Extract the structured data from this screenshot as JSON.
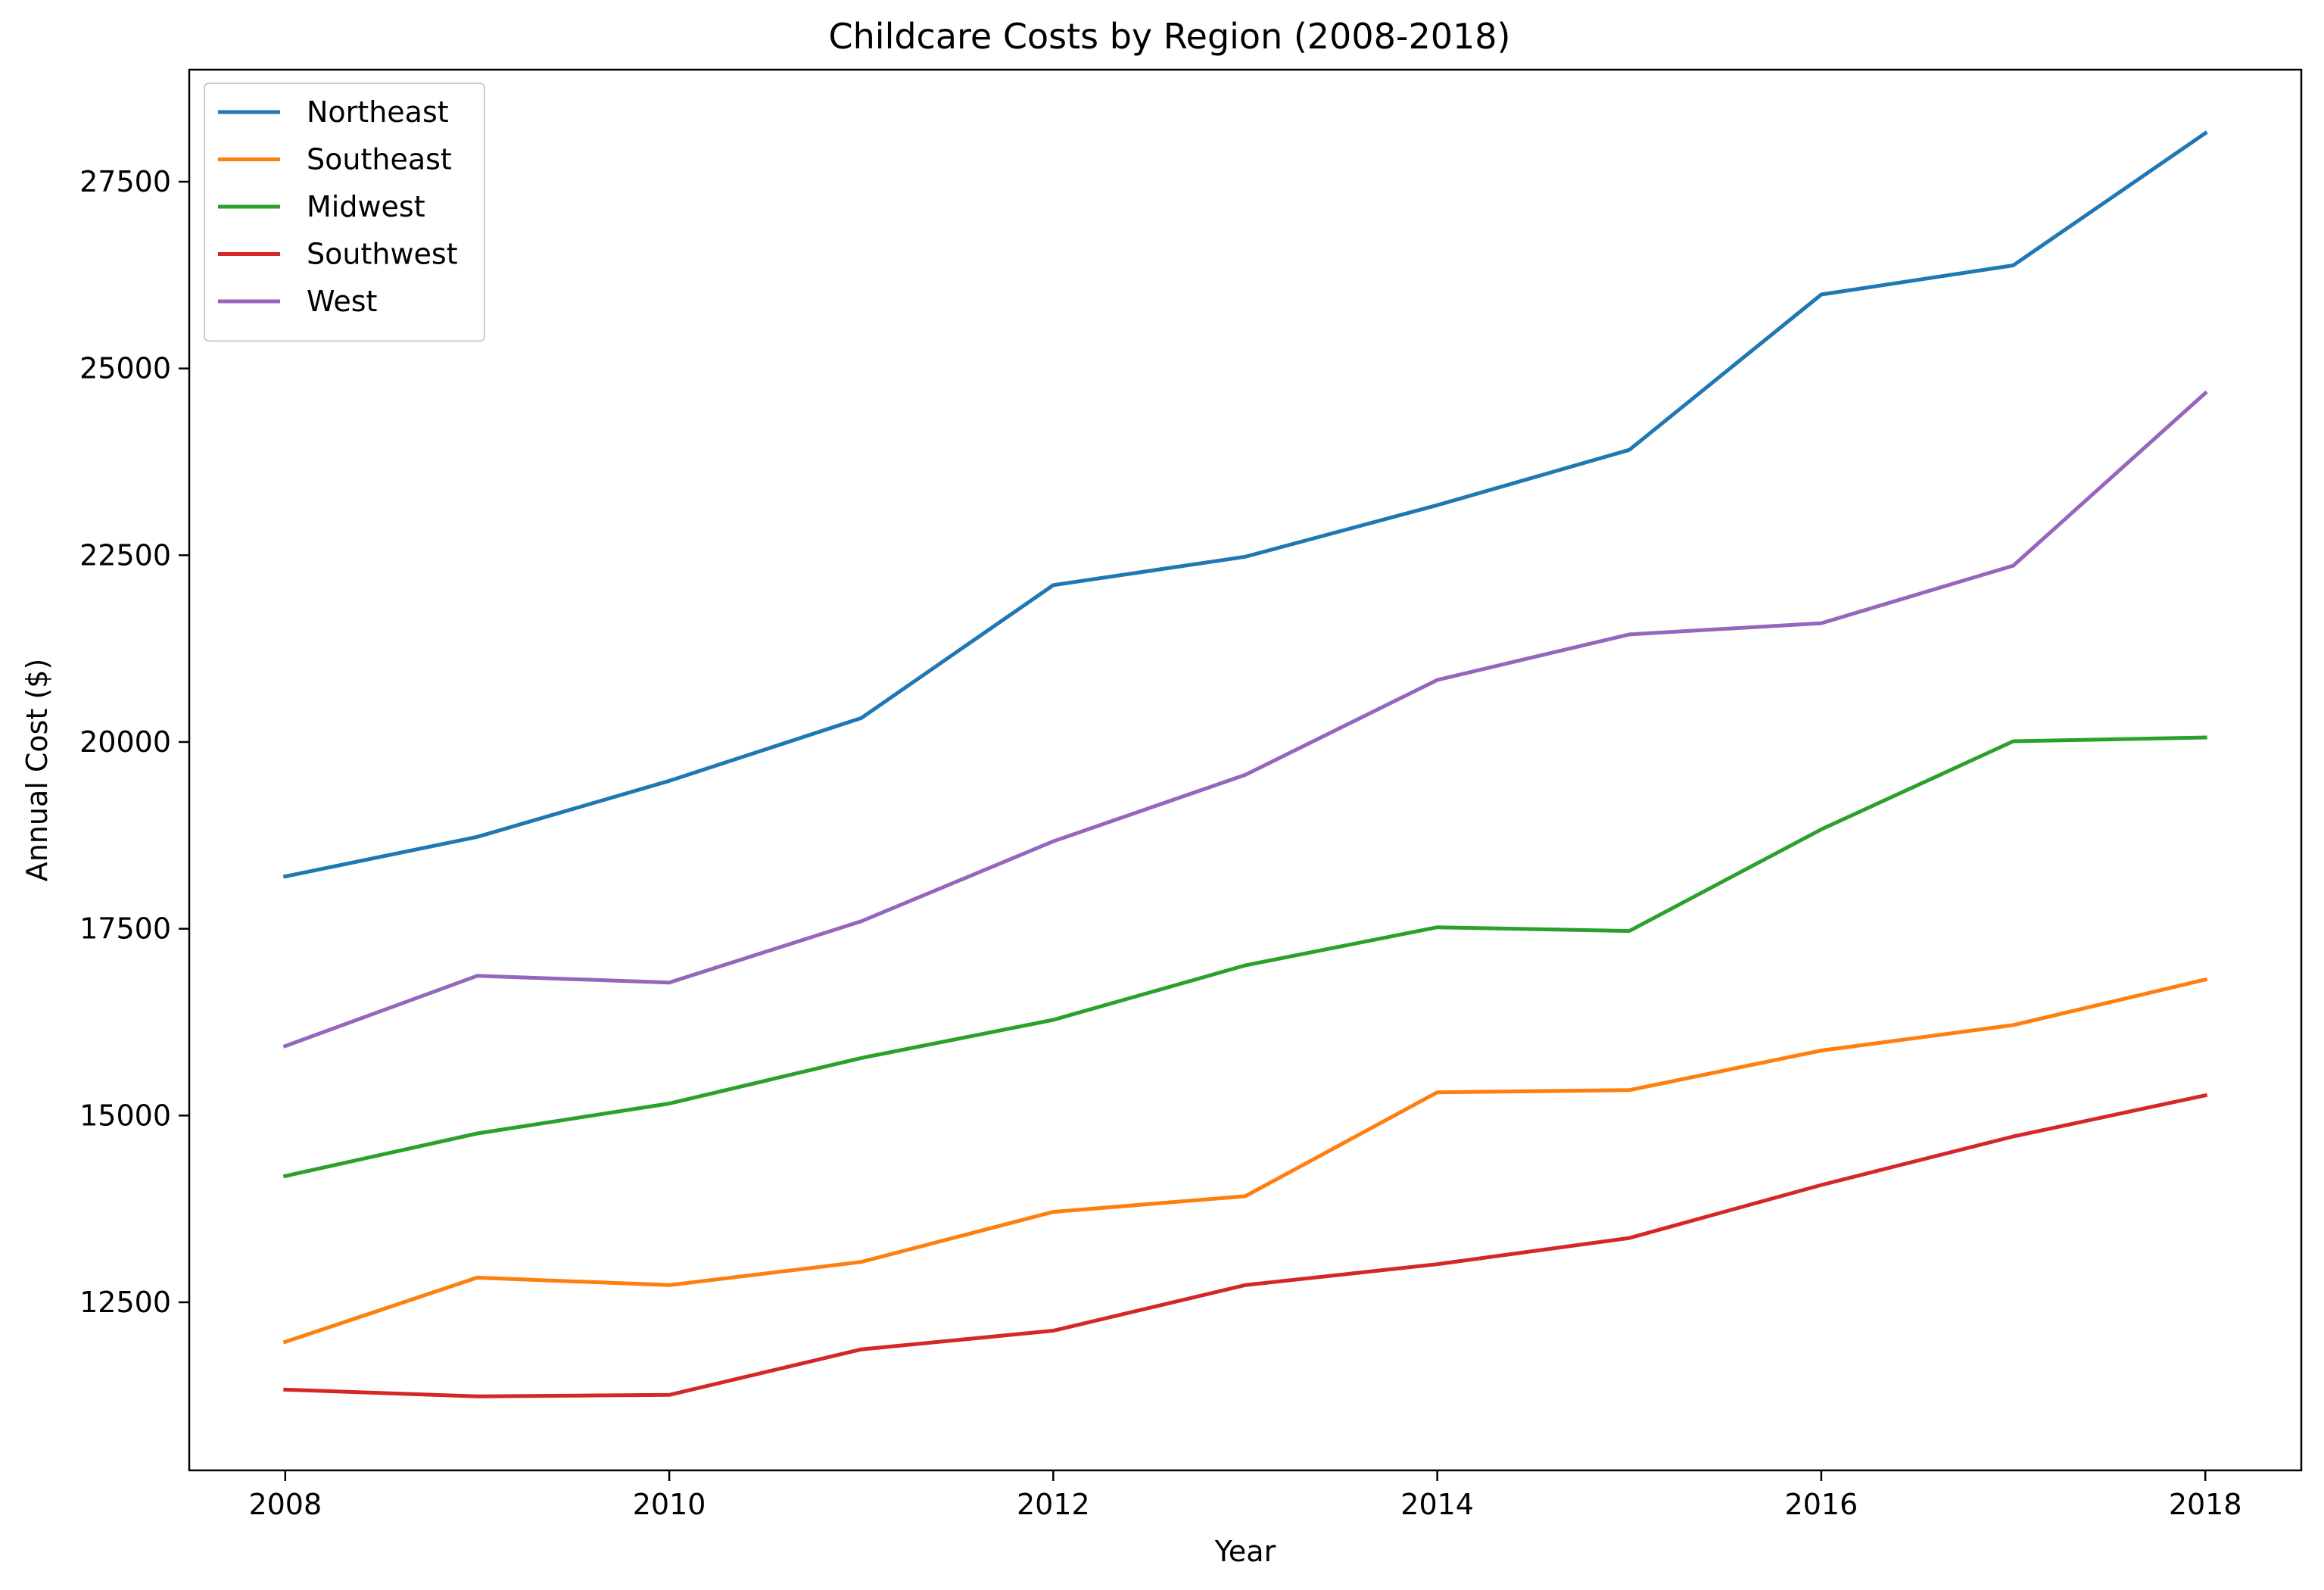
{
  "chart_data": {
    "type": "line",
    "title": "Childcare Costs by Region (2008-2018)",
    "xlabel": "Year",
    "ylabel": "Annual Cost ($)",
    "x": [
      2008,
      2009,
      2010,
      2011,
      2012,
      2013,
      2014,
      2015,
      2016,
      2017,
      2018
    ],
    "xlim": [
      2007.5,
      2018.5
    ],
    "ylim": [
      10250,
      29000
    ],
    "xticks": [
      2008,
      2010,
      2012,
      2014,
      2016,
      2018
    ],
    "yticks": [
      12500,
      15000,
      17500,
      20000,
      22500,
      25000,
      27500
    ],
    "grid": false,
    "legend_position": "top-left",
    "series": [
      {
        "name": "Northeast",
        "color": "#1f77b4",
        "values": [
          18200,
          18730,
          19480,
          20320,
          22100,
          22480,
          23170,
          23910,
          25990,
          26380,
          28150
        ]
      },
      {
        "name": "Southeast",
        "color": "#ff7f0e",
        "values": [
          11970,
          12830,
          12730,
          13040,
          13710,
          13920,
          15310,
          15340,
          15870,
          16210,
          16820
        ]
      },
      {
        "name": "Midwest",
        "color": "#2ca02c",
        "values": [
          14190,
          14760,
          15160,
          15770,
          16280,
          17010,
          17520,
          17470,
          18830,
          20010,
          20060
        ]
      },
      {
        "name": "Southwest",
        "color": "#d62728",
        "values": [
          11330,
          11240,
          11260,
          11870,
          12120,
          12730,
          13010,
          13360,
          14070,
          14720,
          15270
        ]
      },
      {
        "name": "West",
        "color": "#9467bd",
        "values": [
          15930,
          16870,
          16780,
          17600,
          18670,
          19560,
          20830,
          21440,
          21590,
          22360,
          24670
        ]
      }
    ]
  }
}
